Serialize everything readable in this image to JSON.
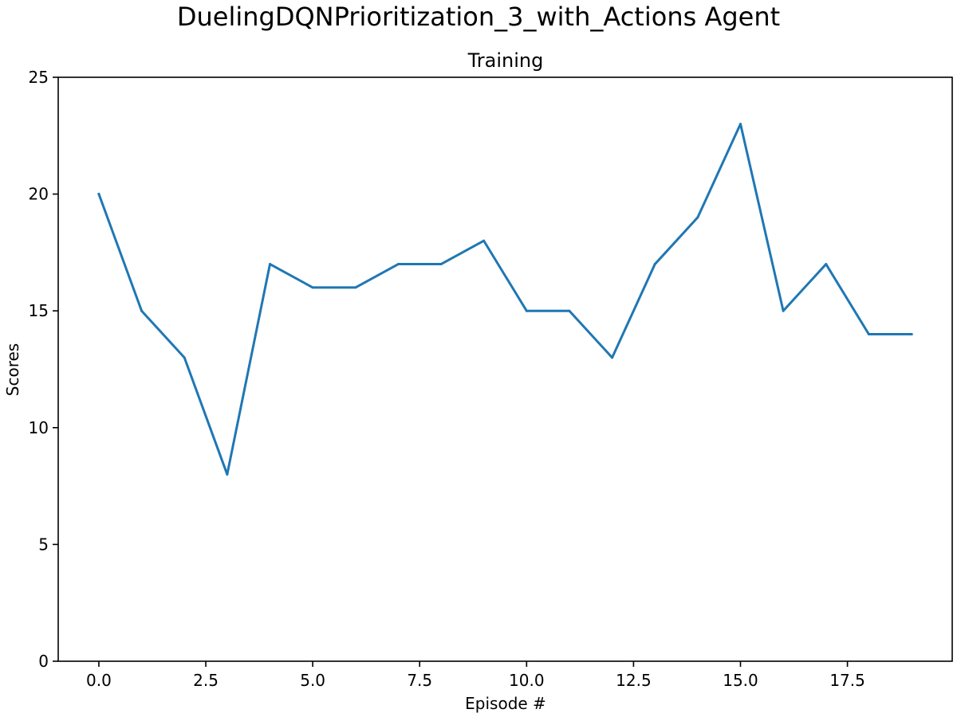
{
  "suptitle": "DuelingDQNPrioritization_3_with_Actions Agent",
  "chart_data": {
    "type": "line",
    "title": "Training",
    "xlabel": "Episode #",
    "ylabel": "Scores",
    "xlim": [
      -0.95,
      19.95
    ],
    "ylim": [
      0,
      25
    ],
    "x_ticks": [
      0.0,
      2.5,
      5.0,
      7.5,
      10.0,
      12.5,
      15.0,
      17.5
    ],
    "x_tick_labels": [
      "0.0",
      "2.5",
      "5.0",
      "7.5",
      "10.0",
      "12.5",
      "15.0",
      "17.5"
    ],
    "y_ticks": [
      0,
      5,
      10,
      15,
      20,
      25
    ],
    "y_tick_labels": [
      "0",
      "5",
      "10",
      "15",
      "20",
      "25"
    ],
    "grid": false,
    "series": [
      {
        "color": "#1f77b4",
        "x": [
          0,
          1,
          2,
          3,
          4,
          5,
          6,
          7,
          8,
          9,
          10,
          11,
          12,
          13,
          14,
          15,
          16,
          17,
          18,
          19
        ],
        "values": [
          20,
          15,
          13,
          8,
          17,
          16,
          16,
          17,
          17,
          18,
          15,
          15,
          13,
          17,
          19,
          23,
          15,
          17,
          14,
          14
        ]
      }
    ]
  }
}
